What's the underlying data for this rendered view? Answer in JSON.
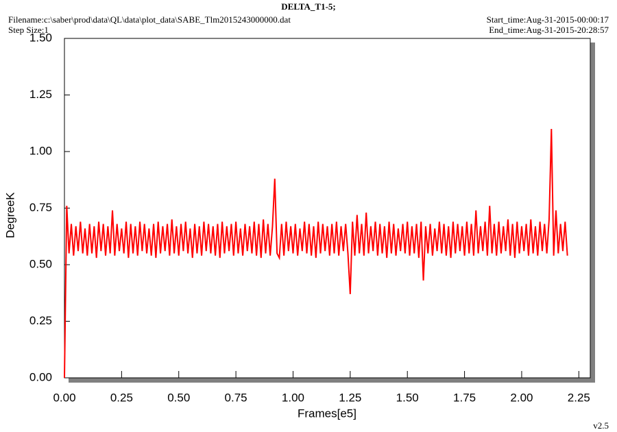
{
  "chart_data": {
    "type": "line",
    "title": "DELTA_T1-5;",
    "filename": "Filename:c:\\saber\\prod\\data\\QL\\data\\plot_data\\SABE_Tlm2015243000000.dat",
    "step_size": "Step Size:1",
    "start_time": "Start_time:Aug-31-2015-00:00:17",
    "end_time": "End_time:Aug-31-2015-20:28:57",
    "version": "v2.5",
    "x_label": "Frames[e5]",
    "y_label": "DegreeK",
    "xlim": [
      0,
      2.3
    ],
    "ylim": [
      0,
      1.5
    ],
    "xticks": [
      {
        "value": 0,
        "label": "0.00"
      },
      0.25,
      {
        "value": 0.5,
        "label": "0.50"
      },
      0.75,
      {
        "value": 1,
        "label": "1.00"
      },
      1.25,
      {
        "value": 1.5,
        "label": "1.50"
      },
      1.75,
      {
        "value": 2,
        "label": "2.00"
      },
      2.25
    ],
    "yticks": [
      {
        "value": 0,
        "label": "0.00"
      },
      0.25,
      {
        "value": 0.5,
        "label": "0.50"
      },
      0.75,
      {
        "value": 1,
        "label": "1.00"
      },
      1.25,
      {
        "value": 1.5,
        "label": "1.50"
      }
    ],
    "x": [
      0,
      0.01,
      0.02,
      0.03,
      0.04,
      0.05,
      0.06,
      0.07,
      0.08,
      0.09,
      0.1,
      0.11,
      0.12,
      0.13,
      0.14,
      0.15,
      0.16,
      0.17,
      0.18,
      0.19,
      0.2,
      0.21,
      0.22,
      0.23,
      0.24,
      0.25,
      0.26,
      0.27,
      0.28,
      0.29,
      0.3,
      0.31,
      0.32,
      0.33,
      0.34,
      0.35,
      0.36,
      0.37,
      0.38,
      0.39,
      0.4,
      0.41,
      0.42,
      0.43,
      0.44,
      0.45,
      0.46,
      0.47,
      0.48,
      0.49,
      0.5,
      0.51,
      0.52,
      0.53,
      0.54,
      0.55,
      0.56,
      0.57,
      0.58,
      0.59,
      0.6,
      0.61,
      0.62,
      0.63,
      0.64,
      0.65,
      0.66,
      0.67,
      0.68,
      0.69,
      0.7,
      0.71,
      0.72,
      0.73,
      0.74,
      0.75,
      0.76,
      0.77,
      0.78,
      0.79,
      0.8,
      0.81,
      0.82,
      0.83,
      0.84,
      0.85,
      0.86,
      0.87,
      0.88,
      0.89,
      0.9,
      0.91,
      0.92,
      0.93,
      0.94,
      0.95,
      0.96,
      0.97,
      0.98,
      0.99,
      1,
      1.01,
      1.02,
      1.03,
      1.04,
      1.05,
      1.06,
      1.07,
      1.08,
      1.09,
      1.1,
      1.11,
      1.12,
      1.13,
      1.14,
      1.15,
      1.16,
      1.17,
      1.18,
      1.19,
      1.2,
      1.21,
      1.22,
      1.23,
      1.24,
      1.25,
      1.26,
      1.27,
      1.28,
      1.29,
      1.3,
      1.31,
      1.32,
      1.33,
      1.34,
      1.35,
      1.36,
      1.37,
      1.38,
      1.39,
      1.4,
      1.41,
      1.42,
      1.43,
      1.44,
      1.45,
      1.46,
      1.47,
      1.48,
      1.49,
      1.5,
      1.51,
      1.52,
      1.53,
      1.54,
      1.55,
      1.56,
      1.57,
      1.58,
      1.59,
      1.6,
      1.61,
      1.62,
      1.63,
      1.64,
      1.65,
      1.66,
      1.67,
      1.68,
      1.69,
      1.7,
      1.71,
      1.72,
      1.73,
      1.74,
      1.75,
      1.76,
      1.77,
      1.78,
      1.79,
      1.8,
      1.81,
      1.82,
      1.83,
      1.84,
      1.85,
      1.86,
      1.87,
      1.88,
      1.89,
      1.9,
      1.91,
      1.92,
      1.93,
      1.94,
      1.95,
      1.96,
      1.97,
      1.98,
      1.99,
      2,
      2.01,
      2.02,
      2.03,
      2.04,
      2.05,
      2.06,
      2.07,
      2.08,
      2.09,
      2.1,
      2.11,
      2.12,
      2.13,
      2.14,
      2.15,
      2.16,
      2.17,
      2.18,
      2.19,
      2.2
    ],
    "series": [
      {
        "color": "#ff0000",
        "values": [
          0,
          0.76,
          0.55,
          0.68,
          0.54,
          0.67,
          0.56,
          0.69,
          0.55,
          0.66,
          0.54,
          0.68,
          0.55,
          0.67,
          0.53,
          0.69,
          0.56,
          0.68,
          0.54,
          0.67,
          0.55,
          0.74,
          0.54,
          0.68,
          0.56,
          0.66,
          0.55,
          0.69,
          0.53,
          0.68,
          0.55,
          0.67,
          0.54,
          0.69,
          0.56,
          0.68,
          0.55,
          0.66,
          0.54,
          0.68,
          0.53,
          0.69,
          0.55,
          0.67,
          0.56,
          0.68,
          0.54,
          0.7,
          0.55,
          0.67,
          0.54,
          0.68,
          0.56,
          0.69,
          0.55,
          0.66,
          0.53,
          0.68,
          0.55,
          0.67,
          0.54,
          0.69,
          0.56,
          0.68,
          0.55,
          0.67,
          0.54,
          0.68,
          0.53,
          0.69,
          0.55,
          0.67,
          0.56,
          0.68,
          0.54,
          0.69,
          0.55,
          0.66,
          0.54,
          0.68,
          0.56,
          0.67,
          0.55,
          0.69,
          0.54,
          0.68,
          0.53,
          0.7,
          0.55,
          0.68,
          0.54,
          0.67,
          0.88,
          0.55,
          0.53,
          0.68,
          0.54,
          0.69,
          0.56,
          0.67,
          0.55,
          0.68,
          0.54,
          0.66,
          0.56,
          0.69,
          0.55,
          0.68,
          0.54,
          0.67,
          0.53,
          0.69,
          0.55,
          0.68,
          0.56,
          0.67,
          0.54,
          0.68,
          0.55,
          0.69,
          0.54,
          0.67,
          0.56,
          0.68,
          0.55,
          0.37,
          0.69,
          0.54,
          0.72,
          0.55,
          0.68,
          0.54,
          0.73,
          0.55,
          0.67,
          0.56,
          0.69,
          0.54,
          0.68,
          0.55,
          0.67,
          0.53,
          0.69,
          0.55,
          0.68,
          0.54,
          0.66,
          0.56,
          0.68,
          0.55,
          0.69,
          0.54,
          0.67,
          0.55,
          0.68,
          0.53,
          0.69,
          0.43,
          0.67,
          0.55,
          0.68,
          0.54,
          0.66,
          0.56,
          0.69,
          0.55,
          0.68,
          0.54,
          0.67,
          0.53,
          0.69,
          0.55,
          0.68,
          0.56,
          0.67,
          0.54,
          0.69,
          0.55,
          0.68,
          0.54,
          0.74,
          0.55,
          0.67,
          0.56,
          0.69,
          0.54,
          0.76,
          0.55,
          0.68,
          0.54,
          0.69,
          0.55,
          0.67,
          0.56,
          0.7,
          0.54,
          0.68,
          0.53,
          0.69,
          0.55,
          0.67,
          0.56,
          0.68,
          0.54,
          0.7,
          0.55,
          0.67,
          0.54,
          0.69,
          0.56,
          0.68,
          0.55,
          0.7,
          1.1,
          0.54,
          0.74,
          0.55,
          0.68,
          0.56,
          0.69,
          0.54
        ]
      }
    ]
  }
}
